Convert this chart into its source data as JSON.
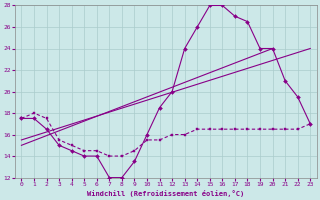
{
  "title": "",
  "xlabel": "Windchill (Refroidissement éolien,°C)",
  "ylabel": "",
  "background_color": "#cce8e8",
  "line_color": "#880088",
  "xlim": [
    -0.5,
    23.5
  ],
  "ylim": [
    12,
    28
  ],
  "yticks": [
    12,
    14,
    16,
    18,
    20,
    22,
    24,
    26,
    28
  ],
  "xticks": [
    0,
    1,
    2,
    3,
    4,
    5,
    6,
    7,
    8,
    9,
    10,
    11,
    12,
    13,
    14,
    15,
    16,
    17,
    18,
    19,
    20,
    21,
    22,
    23
  ],
  "curve_x": [
    0,
    1,
    2,
    3,
    4,
    5,
    6,
    7,
    8,
    9,
    10,
    11,
    12,
    13,
    14,
    15,
    16,
    17,
    18,
    19,
    20,
    21,
    22,
    23
  ],
  "curve_y": [
    17.5,
    17.5,
    16.5,
    15.0,
    14.5,
    14.0,
    14.0,
    12.0,
    12.0,
    13.5,
    16.0,
    18.5,
    20.0,
    24.0,
    26.0,
    28.0,
    28.0,
    27.0,
    26.5,
    24.0,
    24.0,
    21.0,
    19.5,
    17.0
  ],
  "flat_x": [
    0,
    1,
    2,
    3,
    4,
    5,
    6,
    7,
    8,
    9,
    10,
    11,
    12,
    13,
    14,
    15,
    16,
    17,
    18,
    19,
    20,
    21,
    22,
    23
  ],
  "flat_y": [
    17.5,
    18.0,
    17.5,
    15.5,
    15.0,
    14.5,
    14.5,
    14.0,
    14.0,
    14.5,
    15.5,
    15.5,
    16.0,
    16.0,
    16.5,
    16.5,
    16.5,
    16.5,
    16.5,
    16.5,
    16.5,
    16.5,
    16.5,
    17.0
  ],
  "trend1_x": [
    0,
    23
  ],
  "trend1_y": [
    15.5,
    24.0
  ],
  "trend2_x": [
    0,
    20
  ],
  "trend2_y": [
    15.0,
    24.0
  ]
}
